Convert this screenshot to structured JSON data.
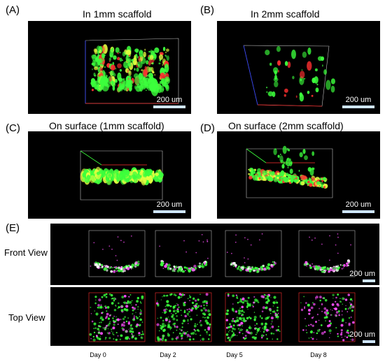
{
  "panels": {
    "A": {
      "label": "(A)",
      "title": "In 1mm scaffold",
      "scale": "200 um"
    },
    "B": {
      "label": "(B)",
      "title": "In 2mm scaffold",
      "scale": "200 um"
    },
    "C": {
      "label": "(C)",
      "title": "On surface (1mm scaffold)",
      "scale": "200 um"
    },
    "D": {
      "label": "(D)",
      "title": "On surface (2mm scaffold)",
      "scale": "200 um"
    }
  },
  "panel_e": {
    "label": "(E)",
    "row_labels": [
      "Front View",
      "Top View"
    ],
    "scale_front": "200 um",
    "scale_top": "200 um",
    "days": [
      "Day 0",
      "Day 2",
      "Day 5",
      "Day 8"
    ]
  },
  "colors": {
    "green": "#3cff3c",
    "red": "#ff3030",
    "yellow": "#e8ff40",
    "magenta": "#ff50ff",
    "white": "#ffffff",
    "scalebar": "#cfe6ff"
  },
  "icons": [
    "scale-bar-icon"
  ]
}
